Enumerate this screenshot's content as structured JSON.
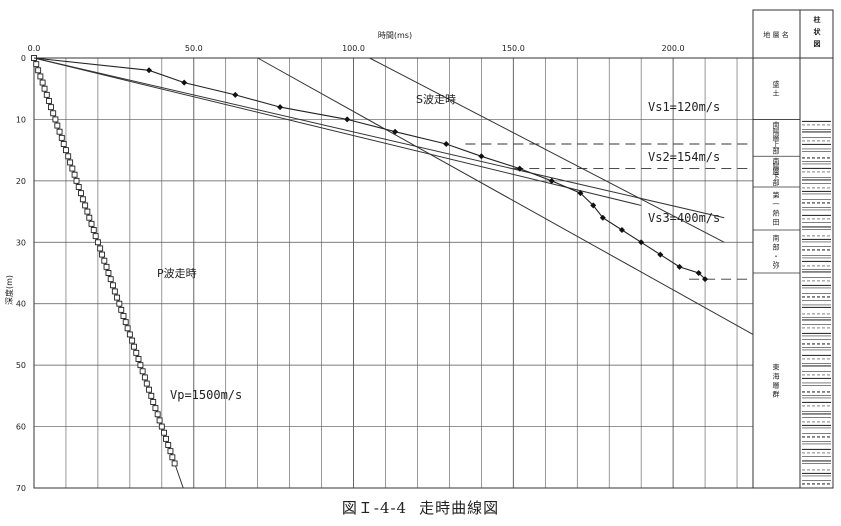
{
  "caption": {
    "figure_no": "図Ｉ-4-4",
    "title": "走時曲線図"
  },
  "chart_data": {
    "type": "scatter",
    "xlabel": "時間(ms)",
    "ylabel": "深度(m)",
    "xlim": [
      0,
      225
    ],
    "ylim": [
      0,
      70
    ],
    "y_inverted": true,
    "grid": true,
    "x_ticks": [
      "0.0",
      "50.0",
      "100.0",
      "150.0",
      "200.0"
    ],
    "x_tick_values": [
      0,
      50,
      100,
      150,
      200
    ],
    "y_ticks": [
      "0",
      "10",
      "20",
      "30",
      "40",
      "50",
      "60",
      "70"
    ],
    "y_tick_values": [
      0,
      10,
      20,
      30,
      40,
      50,
      60,
      70
    ],
    "series": [
      {
        "name": "P波走時",
        "marker": "square",
        "points": [
          [
            0,
            0
          ],
          [
            0.7,
            1
          ],
          [
            1.3,
            2
          ],
          [
            2,
            3
          ],
          [
            2.7,
            4
          ],
          [
            3.3,
            5
          ],
          [
            4,
            6
          ],
          [
            4.7,
            7
          ],
          [
            5.3,
            8
          ],
          [
            6,
            9
          ],
          [
            6.7,
            10
          ],
          [
            7.3,
            11
          ],
          [
            8,
            12
          ],
          [
            8.7,
            13
          ],
          [
            9.3,
            14
          ],
          [
            10,
            15
          ],
          [
            10.7,
            16
          ],
          [
            11.3,
            17
          ],
          [
            12,
            18
          ],
          [
            12.7,
            19
          ],
          [
            13.3,
            20
          ],
          [
            14,
            21
          ],
          [
            14.7,
            22
          ],
          [
            15.3,
            23
          ],
          [
            16,
            24
          ],
          [
            16.7,
            25
          ],
          [
            17.3,
            26
          ],
          [
            18,
            27
          ],
          [
            18.7,
            28
          ],
          [
            19.3,
            29
          ],
          [
            20,
            30
          ],
          [
            20.7,
            31
          ],
          [
            21.3,
            32
          ],
          [
            22,
            33
          ],
          [
            22.7,
            34
          ],
          [
            23.3,
            35
          ],
          [
            24,
            36
          ],
          [
            24.7,
            37
          ],
          [
            25.3,
            38
          ],
          [
            26,
            39
          ],
          [
            26.7,
            40
          ],
          [
            27.3,
            41
          ],
          [
            28,
            42
          ],
          [
            28.7,
            43
          ],
          [
            29.3,
            44
          ],
          [
            30,
            45
          ],
          [
            30.7,
            46
          ],
          [
            31.3,
            47
          ],
          [
            32,
            48
          ],
          [
            32.7,
            49
          ],
          [
            33.3,
            50
          ],
          [
            34,
            51
          ],
          [
            34.7,
            52
          ],
          [
            35.3,
            53
          ],
          [
            36,
            54
          ],
          [
            36.7,
            55
          ],
          [
            37.3,
            56
          ],
          [
            38,
            57
          ],
          [
            38.7,
            58
          ],
          [
            39.3,
            59
          ],
          [
            40,
            60
          ],
          [
            40.7,
            61
          ],
          [
            41.3,
            62
          ],
          [
            42,
            63
          ],
          [
            42.7,
            64
          ],
          [
            43.3,
            65
          ],
          [
            44,
            66
          ]
        ]
      },
      {
        "name": "S波走時",
        "marker": "diamond",
        "points": [
          [
            0,
            0
          ],
          [
            36,
            2
          ],
          [
            47,
            4
          ],
          [
            63,
            6
          ],
          [
            77,
            8
          ],
          [
            98,
            10
          ],
          [
            113,
            12
          ],
          [
            129,
            14
          ],
          [
            140,
            16
          ],
          [
            152,
            18
          ],
          [
            162,
            20
          ],
          [
            171,
            22
          ],
          [
            175,
            24
          ],
          [
            178,
            26
          ],
          [
            184,
            28
          ],
          [
            190,
            30
          ],
          [
            196,
            32
          ],
          [
            202,
            34
          ],
          [
            208,
            35
          ],
          [
            210,
            36
          ]
        ]
      }
    ],
    "fit_lines": [
      {
        "label": "Vp=1500m/s",
        "points": [
          [
            0,
            0
          ],
          [
            46.7,
            70
          ]
        ]
      },
      {
        "label": "Vs1=120m/s",
        "points": [
          [
            0,
            0
          ],
          [
            216,
            26
          ]
        ]
      },
      {
        "label": "Vs2=154m/s",
        "points": [
          [
            0,
            0
          ],
          [
            190,
            24
          ]
        ]
      },
      {
        "label": "Vs3=400m/s",
        "points": [
          [
            70,
            0
          ],
          [
            225,
            45
          ]
        ]
      },
      {
        "label": "S波走時",
        "points": [
          [
            105,
            0
          ],
          [
            216,
            30
          ]
        ]
      }
    ],
    "boundaries": [
      14,
      18,
      36
    ],
    "annotations": [
      "S波走時",
      "Vs1=120m/s",
      "Vs2=154m/s",
      "Vs3=400m/s",
      "P波走時",
      "Vp=1500m/s"
    ]
  },
  "legend": {
    "headers": [
      "地 層 名",
      "柱状図"
    ],
    "layers": [
      {
        "name": "盛土",
        "top": 0,
        "bottom": 10
      },
      {
        "name": "南陽層上部",
        "top": 10,
        "bottom": 16
      },
      {
        "name": "南陽層下部",
        "top": 16,
        "bottom": 21
      },
      {
        "name": "第一熱田",
        "top": 21,
        "bottom": 28
      },
      {
        "name": "南部・弥",
        "top": 28,
        "bottom": 35
      },
      {
        "name": "東海層群",
        "top": 35,
        "bottom": 70
      }
    ]
  }
}
